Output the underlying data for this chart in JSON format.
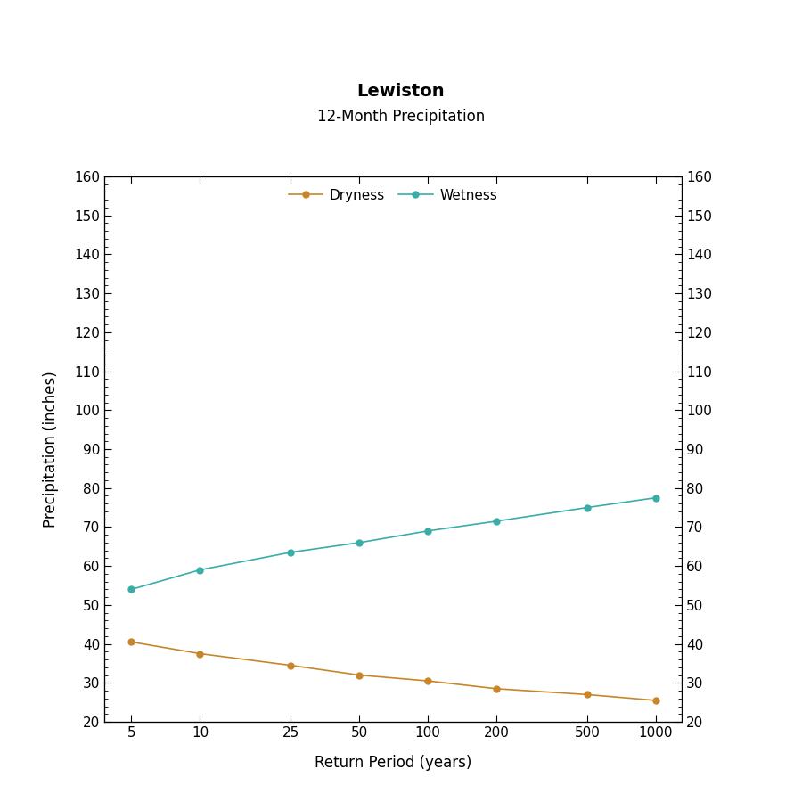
{
  "title": "Lewiston",
  "subtitle": "12-Month Precipitation",
  "xlabel": "Return Period (years)",
  "ylabel": "Precipitation (inches)",
  "x_values": [
    5,
    10,
    25,
    50,
    100,
    200,
    500,
    1000
  ],
  "dryness_values": [
    40.5,
    37.5,
    34.5,
    32.0,
    30.5,
    28.5,
    27.0,
    25.5
  ],
  "wetness_values": [
    54.0,
    59.0,
    63.5,
    66.0,
    69.0,
    71.5,
    75.0,
    77.5
  ],
  "dryness_color": "#C8862A",
  "wetness_color": "#3AADA8",
  "ylim": [
    20,
    160
  ],
  "yticks": [
    20,
    30,
    40,
    50,
    60,
    70,
    80,
    90,
    100,
    110,
    120,
    130,
    140,
    150,
    160
  ],
  "background_color": "#FFFFFF",
  "title_fontsize": 14,
  "subtitle_fontsize": 12,
  "axis_label_fontsize": 12,
  "tick_fontsize": 11,
  "legend_fontsize": 11
}
